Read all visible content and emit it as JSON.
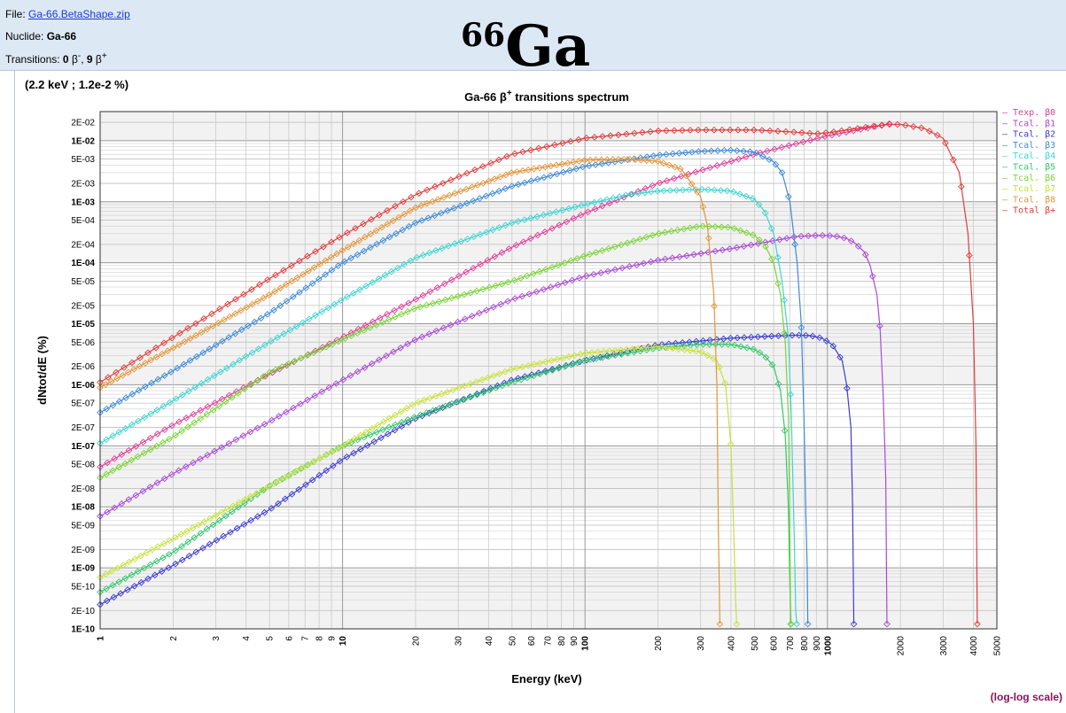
{
  "header": {
    "file_label": "File:",
    "file_link": "Ga-66.BetaShape.zip",
    "nuclide_label": "Nuclide:",
    "nuclide_value": "Ga-66",
    "transitions_label": "Transitions:",
    "transitions_minus_count": "0",
    "transitions_minus_symbol": "β",
    "transitions_minus_sign": "-",
    "transitions_sep": ",",
    "transitions_plus_count": "9",
    "transitions_plus_symbol": "β",
    "transitions_plus_sign": "+",
    "big_mass": "66",
    "big_symbol": "Ga"
  },
  "cursor_readout": "(2.2 keV ; 1.2e-2 %)",
  "scale_note": "(log-log scale)",
  "chart_data": {
    "type": "line",
    "title": "Ga-66 β",
    "title_sup": "+",
    "title_rest": " transitions spectrum",
    "xlabel": "Energy (keV)",
    "ylabel": "dNtot/dE (%)",
    "xscale": "log",
    "yscale": "log",
    "xlim": [
      1,
      5000
    ],
    "ylim": [
      1e-10,
      0.03
    ],
    "x_ticks": [
      {
        "v": 1,
        "label": "1",
        "bold": true
      },
      {
        "v": 2,
        "label": "2"
      },
      {
        "v": 3,
        "label": "3"
      },
      {
        "v": 4,
        "label": "4"
      },
      {
        "v": 5,
        "label": "5"
      },
      {
        "v": 6,
        "label": "6"
      },
      {
        "v": 7,
        "label": "7"
      },
      {
        "v": 8,
        "label": "8"
      },
      {
        "v": 9,
        "label": "9"
      },
      {
        "v": 10,
        "label": "10",
        "bold": true
      },
      {
        "v": 20,
        "label": "20"
      },
      {
        "v": 30,
        "label": "30"
      },
      {
        "v": 40,
        "label": "40"
      },
      {
        "v": 50,
        "label": "50"
      },
      {
        "v": 60,
        "label": "60"
      },
      {
        "v": 70,
        "label": "70"
      },
      {
        "v": 80,
        "label": "80"
      },
      {
        "v": 90,
        "label": "90"
      },
      {
        "v": 100,
        "label": "100",
        "bold": true
      },
      {
        "v": 200,
        "label": "200"
      },
      {
        "v": 300,
        "label": "300"
      },
      {
        "v": 400,
        "label": "400"
      },
      {
        "v": 500,
        "label": "500"
      },
      {
        "v": 600,
        "label": "600"
      },
      {
        "v": 700,
        "label": "700"
      },
      {
        "v": 800,
        "label": "800"
      },
      {
        "v": 900,
        "label": "900"
      },
      {
        "v": 1000,
        "label": "1000",
        "bold": true
      },
      {
        "v": 2000,
        "label": "2000"
      },
      {
        "v": 3000,
        "label": "3000"
      },
      {
        "v": 4000,
        "label": "4000"
      },
      {
        "v": 5000,
        "label": "5000"
      }
    ],
    "y_ticks": [
      {
        "v": 0.02,
        "label": "2E-02"
      },
      {
        "v": 0.01,
        "label": "1E-02",
        "bold": true
      },
      {
        "v": 0.005,
        "label": "5E-03"
      },
      {
        "v": 0.002,
        "label": "2E-03"
      },
      {
        "v": 0.001,
        "label": "1E-03",
        "bold": true
      },
      {
        "v": 0.0005,
        "label": "5E-04"
      },
      {
        "v": 0.0002,
        "label": "2E-04"
      },
      {
        "v": 0.0001,
        "label": "1E-04",
        "bold": true
      },
      {
        "v": 5e-05,
        "label": "5E-05"
      },
      {
        "v": 2e-05,
        "label": "2E-05"
      },
      {
        "v": 1e-05,
        "label": "1E-05",
        "bold": true
      },
      {
        "v": 5e-06,
        "label": "5E-06"
      },
      {
        "v": 2e-06,
        "label": "2E-06"
      },
      {
        "v": 1e-06,
        "label": "1E-06",
        "bold": true
      },
      {
        "v": 5e-07,
        "label": "5E-07"
      },
      {
        "v": 2e-07,
        "label": "2E-07"
      },
      {
        "v": 1e-07,
        "label": "1E-07",
        "bold": true
      },
      {
        "v": 5e-08,
        "label": "5E-08"
      },
      {
        "v": 2e-08,
        "label": "2E-08"
      },
      {
        "v": 1e-08,
        "label": "1E-08",
        "bold": true
      },
      {
        "v": 5e-09,
        "label": "5E-09"
      },
      {
        "v": 2e-09,
        "label": "2E-09"
      },
      {
        "v": 1e-09,
        "label": "1E-09",
        "bold": true
      },
      {
        "v": 5e-10,
        "label": "5E-10"
      },
      {
        "v": 2e-10,
        "label": "2E-10"
      },
      {
        "v": 1e-10,
        "label": "1E-10",
        "bold": true
      }
    ],
    "grid": true,
    "legend_position": "right",
    "series": [
      {
        "name": "Texp. β0",
        "color": "#e0409a",
        "x": [
          1,
          2,
          5,
          10,
          20,
          50,
          100,
          200,
          500,
          1000,
          1800
        ],
        "y": [
          4.5e-08,
          2.2e-07,
          1.5e-06,
          6e-06,
          2.5e-05,
          0.00018,
          0.00065,
          0.002,
          0.006,
          0.012,
          0.019
        ]
      },
      {
        "name": "Tcal. β1",
        "color": "#a84ad6",
        "x": [
          1,
          2,
          5,
          10,
          20,
          50,
          100,
          200,
          400,
          600,
          750,
          900,
          1000,
          1100,
          1200,
          1300,
          1420,
          1500,
          1600,
          1650,
          1700,
          1740,
          1760
        ],
        "y": [
          7e-09,
          3.5e-08,
          2.5e-07,
          1.2e-06,
          5.5e-06,
          2.5e-05,
          6e-05,
          0.00011,
          0.00017,
          0.00023,
          0.00027,
          0.00028,
          0.00028,
          0.00027,
          0.00025,
          0.00021,
          0.00015,
          9e-05,
          3e-05,
          8e-06,
          6e-07,
          3e-08,
          1.2e-10
        ]
      },
      {
        "name": "Tcal. β2",
        "color": "#3c3cd4",
        "x": [
          1,
          2,
          5,
          10,
          20,
          50,
          100,
          200,
          400,
          600,
          750,
          850,
          950,
          1050,
          1150,
          1200,
          1250,
          1270,
          1285
        ],
        "y": [
          2.5e-10,
          1.1e-09,
          9e-09,
          6e-08,
          2.8e-07,
          1.2e-06,
          2.5e-06,
          4.5e-06,
          5.8e-06,
          6.3e-06,
          6.5e-06,
          6.4e-06,
          5.8e-06,
          4.5e-06,
          2.5e-06,
          1e-06,
          2e-07,
          1e-08,
          1.2e-10
        ]
      },
      {
        "name": "Tcal. β3",
        "color": "#3e8ad8",
        "x": [
          1,
          2,
          5,
          10,
          20,
          50,
          100,
          200,
          300,
          400,
          500,
          600,
          650,
          700,
          750,
          780,
          800,
          815,
          825,
          830
        ],
        "y": [
          3.5e-07,
          1.7e-06,
          1.5e-05,
          0.0001,
          0.00045,
          0.0018,
          0.0038,
          0.0058,
          0.0067,
          0.007,
          0.0065,
          0.0045,
          0.003,
          0.001,
          0.0001,
          1e-05,
          3e-07,
          7e-09,
          1e-09,
          1.2e-10
        ]
      },
      {
        "name": "Tcal. β4",
        "color": "#40d4d0",
        "x": [
          1,
          2,
          5,
          10,
          20,
          50,
          100,
          150,
          200,
          300,
          400,
          500,
          550,
          600,
          650,
          690,
          710,
          730,
          740,
          748
        ],
        "y": [
          1.1e-07,
          5.5e-07,
          5e-06,
          2.5e-05,
          0.00012,
          0.00045,
          0.0009,
          0.0013,
          0.0015,
          0.0016,
          0.0015,
          0.0011,
          0.0007,
          0.0003,
          5e-05,
          6e-06,
          3e-07,
          3e-09,
          2e-10,
          1.2e-10
        ]
      },
      {
        "name": "Tcal. β5",
        "color": "#30c86a",
        "x": [
          1,
          2,
          5,
          10,
          20,
          50,
          100,
          200,
          300,
          400,
          500,
          550,
          600,
          640,
          670,
          690,
          700,
          708
        ],
        "y": [
          4e-10,
          1.8e-09,
          2.2e-08,
          1e-07,
          3e-07,
          1.1e-06,
          2.5e-06,
          4e-06,
          4.6e-06,
          4.6e-06,
          3.8e-06,
          3e-06,
          2e-06,
          8e-07,
          1.5e-07,
          1e-08,
          5e-10,
          1.2e-10
        ]
      },
      {
        "name": "Tcal. β6",
        "color": "#7ad438",
        "x": [
          1,
          2,
          5,
          10,
          20,
          50,
          100,
          200,
          300,
          400,
          500,
          550,
          600,
          640,
          670,
          690,
          700,
          705
        ],
        "y": [
          3e-08,
          1.4e-07,
          1.6e-06,
          5.5e-06,
          1.8e-05,
          5e-05,
          0.00013,
          0.0003,
          0.0004,
          0.00038,
          0.00028,
          0.0002,
          0.0001,
          3e-05,
          5e-06,
          3e-07,
          4e-09,
          1.2e-10
        ]
      },
      {
        "name": "Tcal. β7",
        "color": "#c8e040",
        "x": [
          1,
          2,
          5,
          10,
          20,
          50,
          100,
          200,
          300,
          350,
          380,
          400,
          410,
          418,
          422
        ],
        "y": [
          7e-10,
          3e-09,
          2.2e-08,
          1e-07,
          5e-07,
          1.8e-06,
          3.3e-06,
          4.2e-06,
          3.5e-06,
          2.5e-06,
          1e-06,
          1e-07,
          5e-09,
          3e-10,
          1.2e-10
        ]
      },
      {
        "name": "Tcal. β8",
        "color": "#e2963c",
        "x": [
          1,
          2,
          5,
          10,
          20,
          50,
          100,
          150,
          200,
          250,
          300,
          320,
          340,
          350,
          355,
          360
        ],
        "y": [
          9e-07,
          4e-06,
          3e-05,
          0.00016,
          0.0008,
          0.003,
          0.0048,
          0.005,
          0.0046,
          0.0034,
          0.0012,
          0.0004,
          3e-05,
          1e-06,
          4e-09,
          1.2e-10
        ]
      },
      {
        "name": "Total β+",
        "color": "#e03c3c",
        "x": [
          1,
          2,
          5,
          10,
          20,
          50,
          100,
          200,
          300,
          500,
          700,
          900,
          1000,
          1500,
          1800,
          2000,
          2500,
          3000,
          3500,
          3800,
          4000,
          4100,
          4150
        ],
        "y": [
          1.1e-06,
          6e-06,
          5.5e-05,
          0.00028,
          0.0013,
          0.006,
          0.011,
          0.0145,
          0.015,
          0.015,
          0.014,
          0.013,
          0.0135,
          0.017,
          0.0185,
          0.0185,
          0.016,
          0.011,
          0.003,
          0.0003,
          1e-05,
          1e-07,
          1.2e-10
        ]
      }
    ]
  }
}
